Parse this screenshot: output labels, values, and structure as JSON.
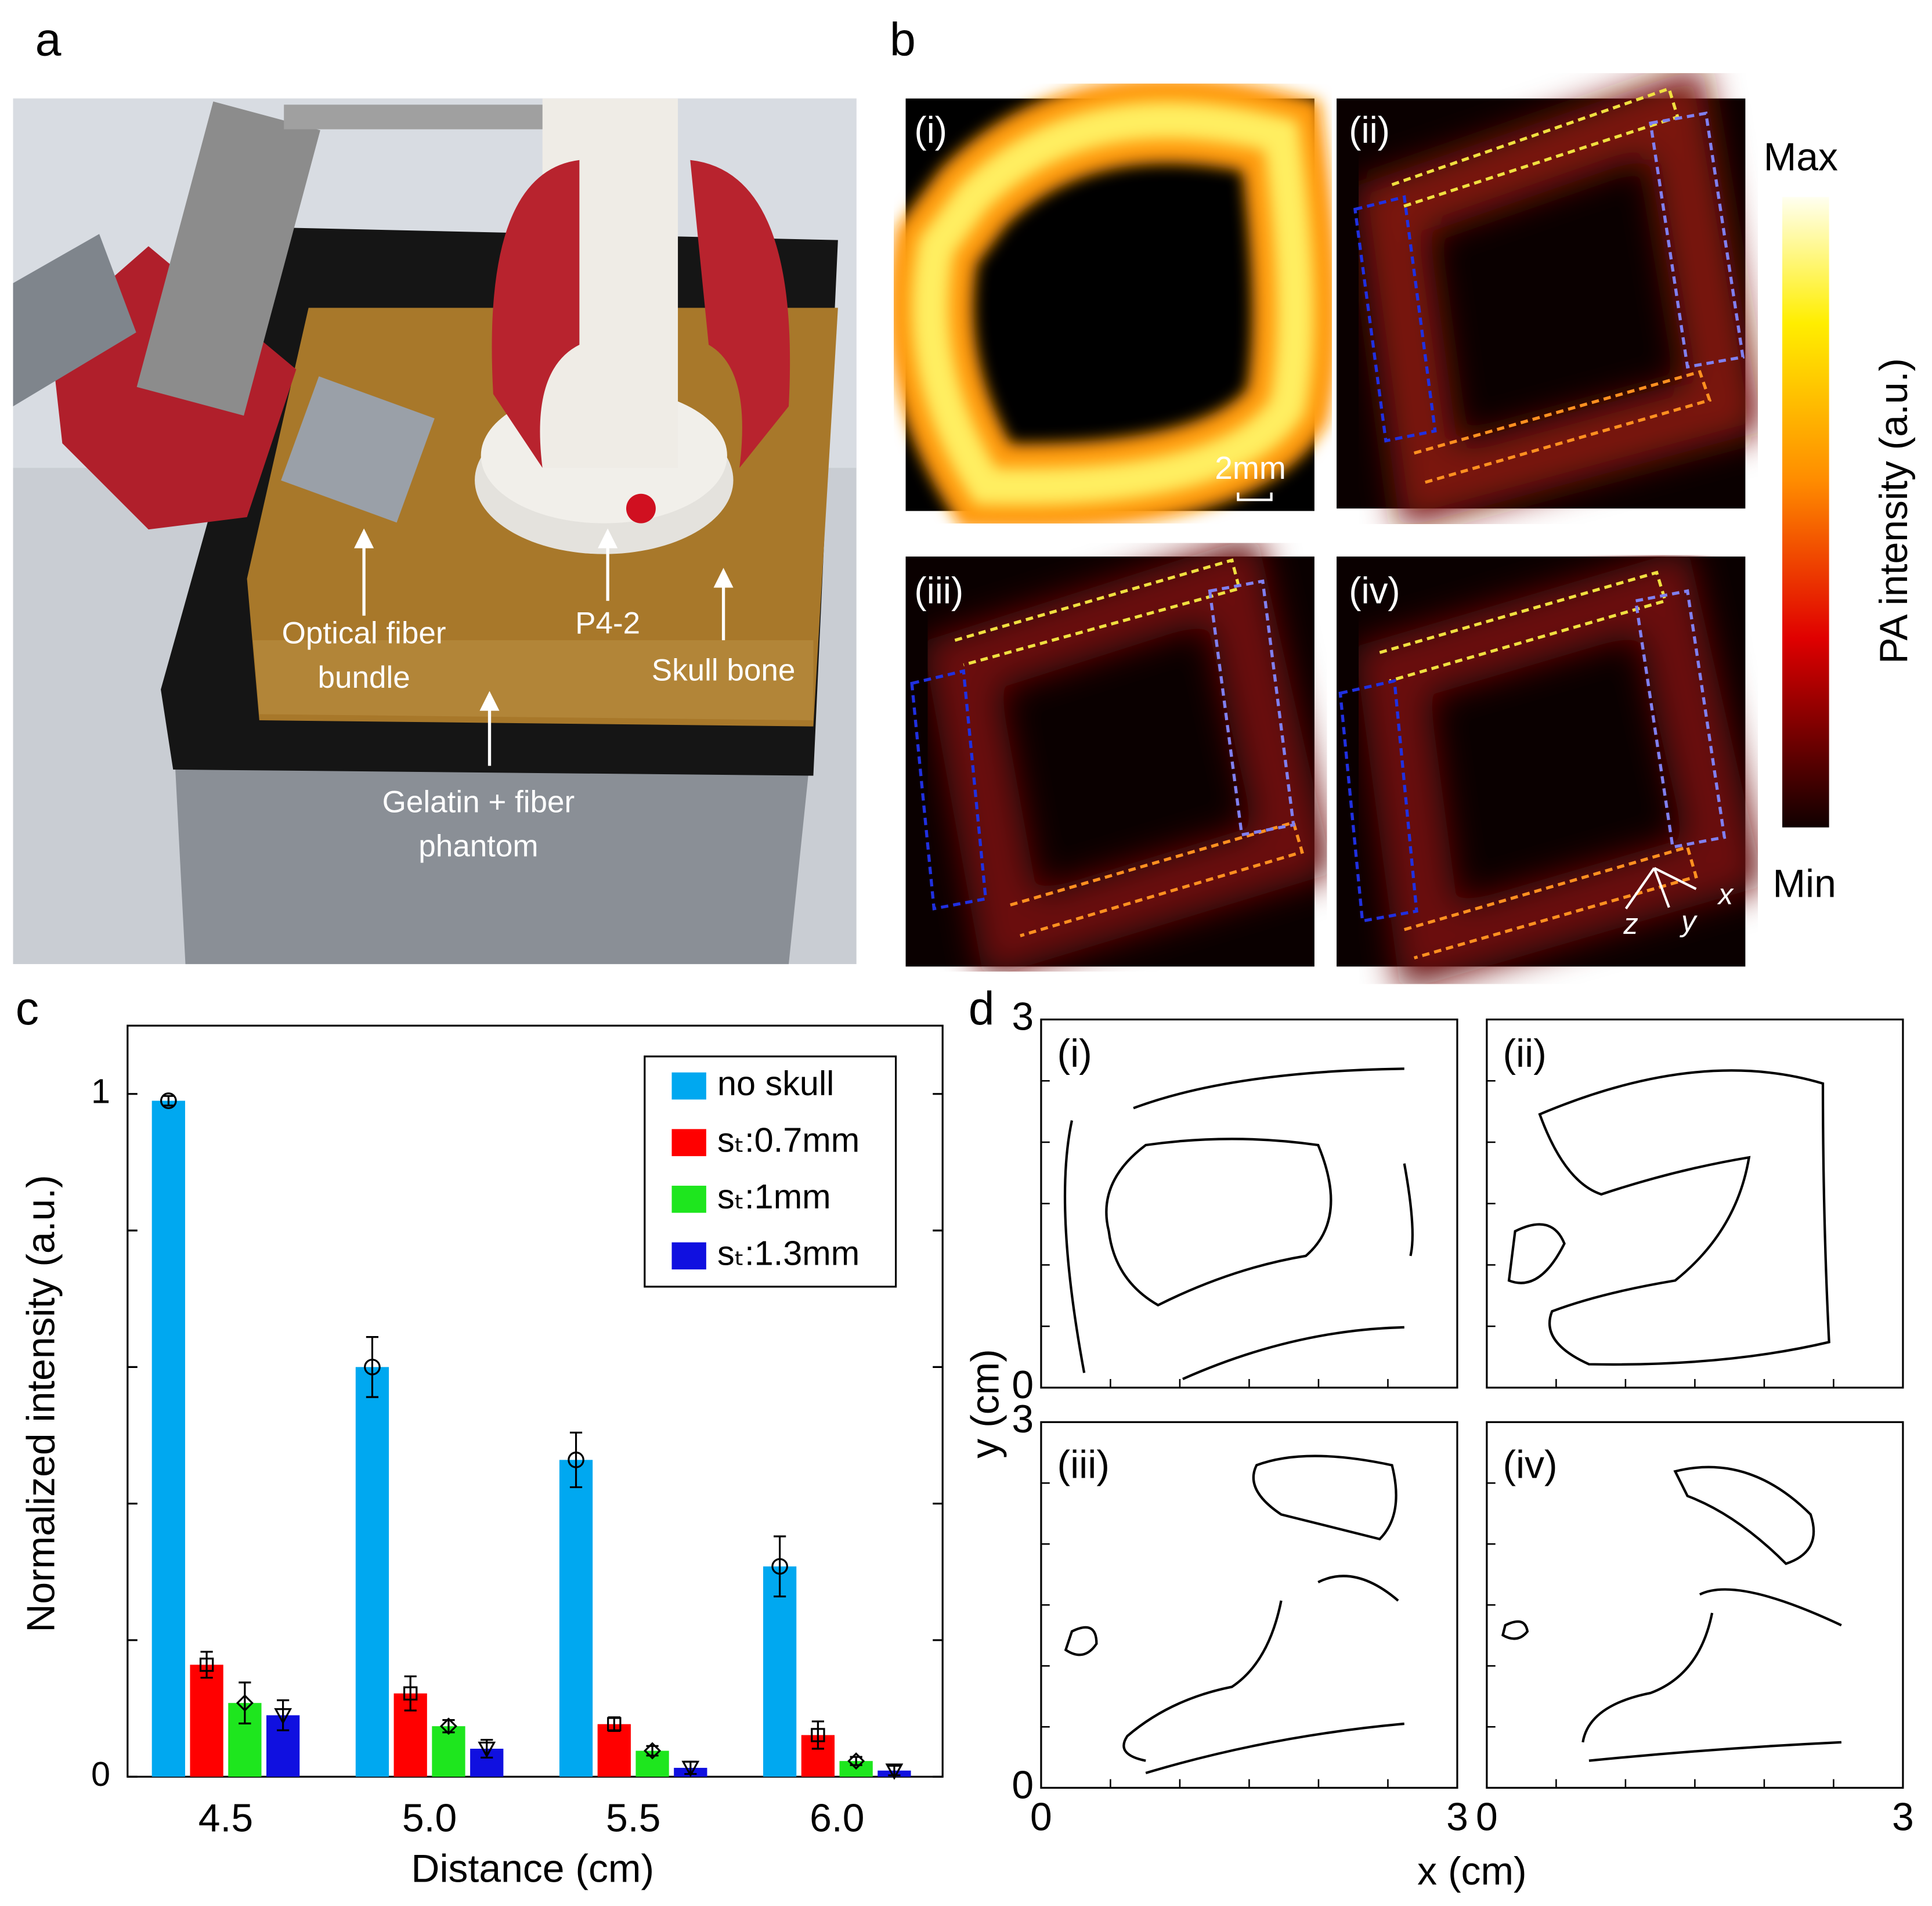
{
  "panel_labels": [
    "a",
    "b",
    "c",
    "d"
  ],
  "panel_a": {
    "annotations": [
      {
        "lines": [
          "Optical fiber",
          "bundle"
        ]
      },
      {
        "lines": [
          "P4-2"
        ]
      },
      {
        "lines": [
          "Skull bone"
        ]
      },
      {
        "lines": [
          "Gelatin + fiber",
          "phantom"
        ]
      }
    ]
  },
  "panel_b": {
    "image_labels": [
      "(i)",
      "(ii)",
      "(iii)",
      "(iv)"
    ],
    "scale_bar": "2mm",
    "colorbar": {
      "label": "PA intensity (a.u.)",
      "max": "Max",
      "min": "Min"
    },
    "axes": [
      "x",
      "y",
      "z"
    ]
  },
  "chart_data": {
    "type": "bar",
    "xlabel": "Distance (cm)",
    "ylabel": "Normalized intensity (a.u.)",
    "categories": [
      "4.5",
      "5.0",
      "5.5",
      "6.0"
    ],
    "ylim": [
      0,
      1.1
    ],
    "yticks": [
      0,
      1
    ],
    "yminorticks": [
      0.2,
      0.4,
      0.6,
      0.8
    ],
    "legend": "upper right",
    "series": [
      {
        "name": "no skull",
        "color": "#00a8f0",
        "marker": "circle",
        "values": [
          0.99,
          0.6,
          0.464,
          0.308
        ],
        "errors": [
          0.007,
          0.044,
          0.04,
          0.044
        ]
      },
      {
        "name": "sₜ:0.7mm",
        "color": "#ff0000",
        "marker": "square",
        "values": [
          0.164,
          0.122,
          0.077,
          0.061
        ],
        "errors": [
          0.019,
          0.025,
          0.01,
          0.02
        ]
      },
      {
        "name": "sₜ:1mm",
        "color": "#1ee61e",
        "marker": "diamond",
        "values": [
          0.108,
          0.074,
          0.038,
          0.023
        ],
        "errors": [
          0.03,
          0.009,
          0.007,
          0.006
        ]
      },
      {
        "name": "sₜ:1.3mm",
        "color": "#1010e0",
        "marker": "triangle",
        "values": [
          0.09,
          0.041,
          0.013,
          0.009
        ],
        "errors": [
          0.022,
          0.013,
          0.009,
          0.007
        ]
      }
    ]
  },
  "panel_d": {
    "plot_labels": [
      "(i)",
      "(ii)",
      "(iii)",
      "(iv)"
    ],
    "xlabel": "x (cm)",
    "ylabel": "y (cm)",
    "xlim": [
      0,
      3
    ],
    "ylim": [
      0,
      3
    ],
    "xticks": [
      0,
      3
    ],
    "yticks": [
      0,
      3
    ],
    "minorticks": [
      0.5,
      1,
      1.5,
      2,
      2.5
    ]
  }
}
